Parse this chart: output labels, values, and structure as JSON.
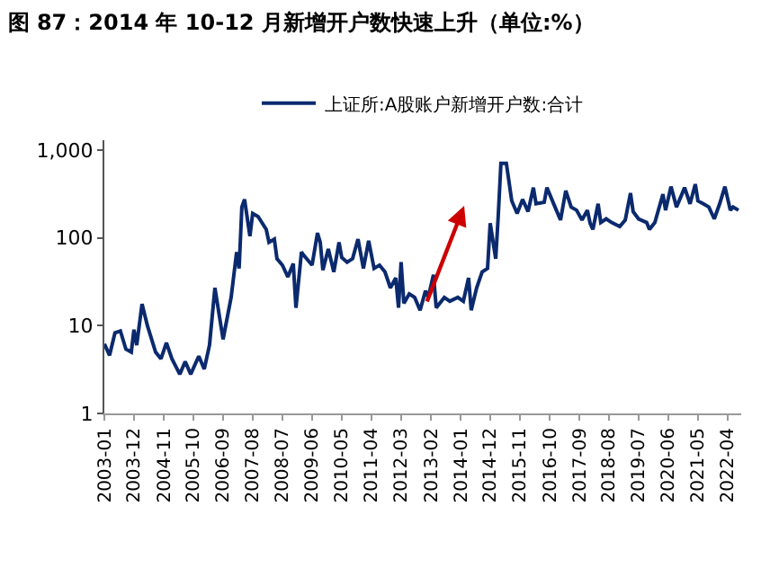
{
  "chart_data": {
    "type": "line",
    "title": "图 87：2014 年 10-12 月新增开户数快速上升（单位:%）",
    "x": [
      "2003-01",
      "2003-03",
      "2003-05",
      "2003-07",
      "2003-09",
      "2003-11",
      "2003-12",
      "2004-01",
      "2004-03",
      "2004-05",
      "2004-08",
      "2004-10",
      "2004-12",
      "2005-02",
      "2005-05",
      "2005-07",
      "2005-09",
      "2005-12",
      "2006-02",
      "2006-04",
      "2006-06",
      "2006-09",
      "2006-12",
      "2007-02",
      "2007-03",
      "2007-04",
      "2007-05",
      "2007-07",
      "2007-08",
      "2007-10",
      "2008-01",
      "2008-02",
      "2008-04",
      "2008-05",
      "2008-07",
      "2008-09",
      "2008-11",
      "2008-12",
      "2009-02",
      "2009-03",
      "2009-06",
      "2009-08",
      "2009-09",
      "2009-10",
      "2009-12",
      "2010-02",
      "2010-04",
      "2010-05",
      "2010-07",
      "2010-09",
      "2010-11",
      "2011-01",
      "2011-03",
      "2011-05",
      "2011-07",
      "2011-09",
      "2011-11",
      "2012-01",
      "2012-02",
      "2012-03",
      "2012-04",
      "2012-06",
      "2012-08",
      "2012-10",
      "2012-12",
      "2013-01",
      "2013-03",
      "2013-04",
      "2013-07",
      "2013-09",
      "2013-12",
      "2014-02",
      "2014-04",
      "2014-05",
      "2014-07",
      "2014-09",
      "2014-11",
      "2014-12",
      "2015-02",
      "2015-03",
      "2015-04",
      "2015-06",
      "2015-08",
      "2015-10",
      "2015-12",
      "2016-02",
      "2016-04",
      "2016-05",
      "2016-08",
      "2016-09",
      "2016-12",
      "2017-02",
      "2017-04",
      "2017-06",
      "2017-08",
      "2017-10",
      "2017-12",
      "2018-01",
      "2018-02",
      "2018-04",
      "2018-05",
      "2018-07",
      "2018-09",
      "2018-12",
      "2019-02",
      "2019-04",
      "2019-05",
      "2019-07",
      "2019-10",
      "2019-11",
      "2020-01",
      "2020-04",
      "2020-05",
      "2020-07",
      "2020-09",
      "2020-11",
      "2020-12",
      "2021-02",
      "2021-04",
      "2021-05",
      "2021-07",
      "2021-09",
      "2021-11",
      "2022-01",
      "2022-03",
      "2022-05",
      "2022-06",
      "2022-08"
    ],
    "series": [
      {
        "name": "上证所:A股账户新增开户数:合计",
        "color": "#0b2a6e",
        "values": [
          6.2,
          4.6,
          8.3,
          8.7,
          5.4,
          5,
          9,
          6,
          17.7,
          10,
          5,
          4.2,
          6.4,
          4.2,
          2.8,
          3.9,
          2.8,
          4.5,
          3.2,
          6,
          27,
          7,
          21,
          69,
          45,
          225,
          275,
          105,
          190,
          175,
          125,
          89,
          97,
          58,
          49,
          36,
          51,
          16,
          69,
          63,
          49,
          114,
          89,
          43,
          75,
          41,
          89,
          60,
          53,
          58,
          97,
          45,
          93,
          45,
          49,
          41,
          27,
          35,
          16,
          53,
          18,
          23,
          21,
          15,
          25,
          21,
          38,
          16,
          21,
          19,
          21,
          19,
          35,
          15,
          27,
          41,
          45,
          147,
          58,
          175,
          710,
          710,
          265,
          190,
          275,
          200,
          375,
          245,
          255,
          375,
          225,
          160,
          345,
          225,
          207,
          160,
          207,
          147,
          125,
          245,
          150,
          165,
          150,
          135,
          160,
          325,
          200,
          165,
          150,
          125,
          150,
          315,
          207,
          385,
          225,
          315,
          375,
          245,
          410,
          265,
          245,
          225,
          165,
          245,
          385,
          207,
          225,
          207
        ]
      }
    ],
    "log": "y",
    "ylim": [
      1,
      1300
    ],
    "yticks": [
      1,
      10,
      100,
      {
        "value": 1000,
        "label": "1,000"
      }
    ],
    "xlim": [
      "2003-01",
      "2022-09"
    ],
    "xticks": [
      "2003-01",
      "2003-12",
      "2004-11",
      "2005-10",
      "2006-09",
      "2007-08",
      "2008-07",
      "2009-06",
      "2010-05",
      "2011-04",
      "2012-03",
      "2013-02",
      "2014-01",
      "2014-12",
      "2015-11",
      "2016-10",
      "2017-09",
      "2018-08",
      "2019-07",
      "2020-06",
      "2021-05",
      "2022-04"
    ],
    "grid": false,
    "legend": "top",
    "marker": "none",
    "line_style": "solid"
  }
}
